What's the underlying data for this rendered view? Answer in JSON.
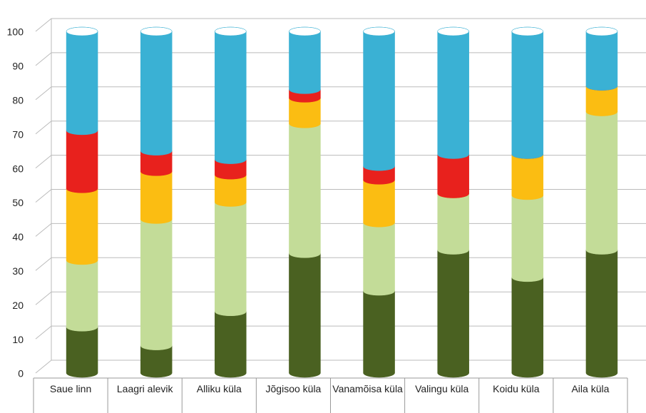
{
  "chart_data": {
    "type": "stacked-cylinder",
    "categories": [
      "Saue linn",
      "Laagri alevik",
      "Alliku küla",
      "Jõgisoo küla",
      "Vanamõisa küla",
      "Valingu küla",
      "Koidu küla",
      "Aila küla"
    ],
    "series": [
      {
        "color": "#4a6121",
        "values": [
          13.5,
          8,
          18,
          35,
          24,
          36,
          28,
          36
        ]
      },
      {
        "color": "#c3dc98",
        "values": [
          19.5,
          37,
          32,
          38,
          20,
          16.5,
          24,
          40.5
        ]
      },
      {
        "color": "#fbbd12",
        "values": [
          21,
          14,
          8,
          7.5,
          12.5,
          0,
          12,
          7.5
        ]
      },
      {
        "color": "#e8211d",
        "values": [
          17,
          6,
          4.5,
          2.5,
          4,
          11.5,
          0,
          0
        ]
      },
      {
        "color": "#3ab1d4",
        "values": [
          29,
          35,
          37.5,
          17,
          39.5,
          36,
          36,
          16
        ]
      }
    ],
    "ylim": [
      0,
      100
    ],
    "yticks": [
      0,
      10,
      20,
      30,
      40,
      50,
      60,
      70,
      80,
      90,
      100
    ],
    "grid": true
  }
}
